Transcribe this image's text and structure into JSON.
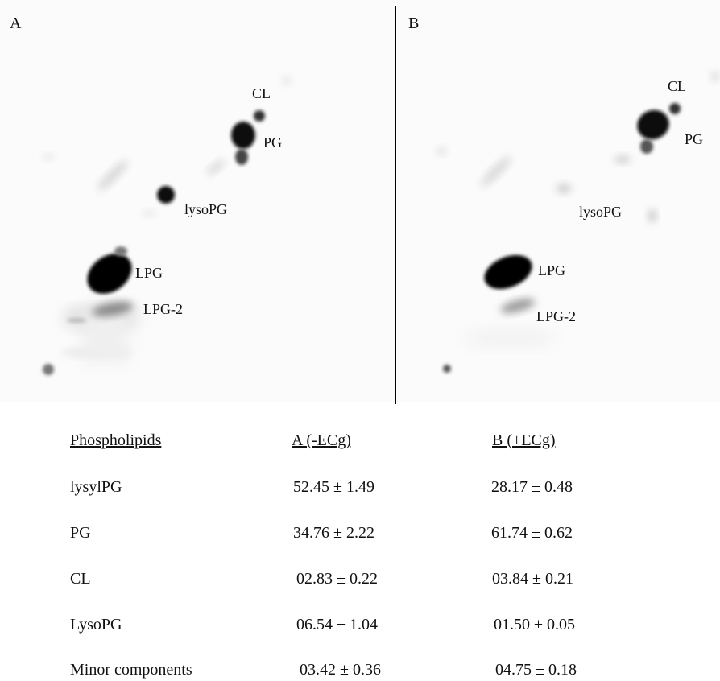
{
  "panels": {
    "a": {
      "letter": "A",
      "labels": {
        "cl": "CL",
        "pg": "PG",
        "lysopg": "lysoPG",
        "lpg": "LPG",
        "lpg2": "LPG-2"
      }
    },
    "b": {
      "letter": "B",
      "labels": {
        "cl": "CL",
        "pg": "PG",
        "lysopg": "lysoPG",
        "lpg": "LPG",
        "lpg2": "LPG-2"
      }
    }
  },
  "table": {
    "headers": [
      "Phospholipids",
      "A (-ECg)",
      "B (+ECg)"
    ],
    "rows": [
      [
        "lysylPG",
        "52.45 ± 1.49",
        "28.17 ± 0.48"
      ],
      [
        "PG",
        "34.76 ± 2.22",
        "61.74 ± 0.62"
      ],
      [
        "CL",
        "02.83 ± 0.22",
        "03.84 ± 0.21"
      ],
      [
        "LysoPG",
        "06.54 ± 1.04",
        "01.50 ± 0.05"
      ],
      [
        "Minor components",
        "03.42 ± 0.36",
        "04.75 ± 0.18"
      ]
    ]
  }
}
